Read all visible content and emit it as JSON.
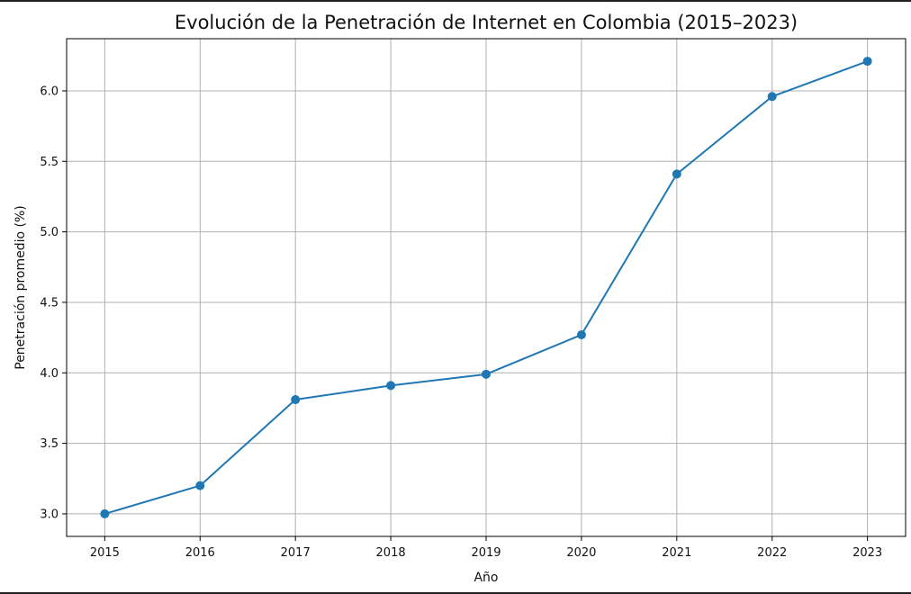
{
  "chart_data": {
    "type": "line",
    "title": "Evolución de la Penetración de Internet en Colombia (2015–2023)",
    "xlabel": "Año",
    "ylabel": "Penetración promedio (%)",
    "x": [
      2015,
      2016,
      2017,
      2018,
      2019,
      2020,
      2021,
      2022,
      2023
    ],
    "x_tick_labels": [
      "2015",
      "2016",
      "2017",
      "2018",
      "2019",
      "2020",
      "2021",
      "2022",
      "2023"
    ],
    "series": [
      {
        "values": [
          3.0,
          3.2,
          3.81,
          3.91,
          3.99,
          4.27,
          5.41,
          5.96,
          6.21
        ],
        "color": "#1f77b4",
        "marker": "circle"
      }
    ],
    "y_ticks": [
      3.0,
      3.5,
      4.0,
      4.5,
      5.0,
      5.5,
      6.0
    ],
    "y_tick_labels": [
      "3.0",
      "3.5",
      "4.0",
      "4.5",
      "5.0",
      "5.5",
      "6.0"
    ],
    "xlim": [
      2014.6,
      2023.4
    ],
    "ylim": [
      2.84,
      6.37
    ],
    "grid": true,
    "grid_color": "#b0b0b0",
    "axes_color": "#000000"
  }
}
